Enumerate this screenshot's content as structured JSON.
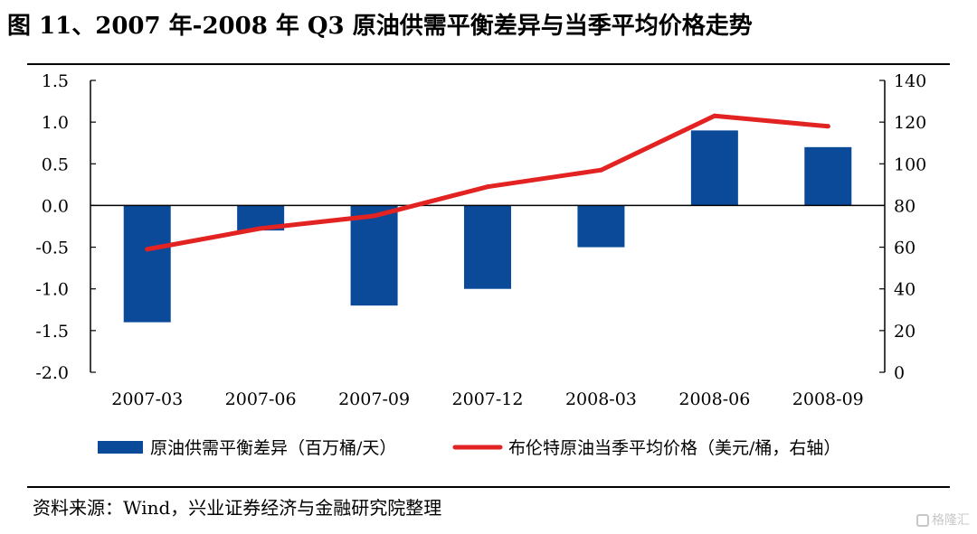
{
  "header": {
    "title": "图 11、2007 年-2008 年 Q3 原油供需平衡差异与当季平均价格走势"
  },
  "footer": {
    "source": "资料来源：Wind，兴业证券经济与金融研究院整理",
    "watermark": "格隆汇"
  },
  "colors": {
    "bar": "#0a4a99",
    "line": "#e32222",
    "axis": "#000000"
  },
  "chart_data": {
    "type": "bar+line",
    "categories": [
      "2007-03",
      "2007-06",
      "2007-09",
      "2007-12",
      "2008-03",
      "2008-06",
      "2008-09"
    ],
    "series": [
      {
        "name": "原油供需平衡差异（百万桶/天）",
        "type": "bar",
        "axis": "left",
        "values": [
          -1.4,
          -0.3,
          -1.2,
          -1.0,
          -0.5,
          0.9,
          0.7
        ]
      },
      {
        "name": "布伦特原油当季平均价格（美元/桶，右轴）",
        "type": "line",
        "axis": "right",
        "values": [
          59,
          69,
          75,
          89,
          97,
          123,
          118
        ]
      }
    ],
    "y_left": {
      "min": -2.0,
      "max": 1.5,
      "step": 0.5,
      "ticks": [
        "-2.0",
        "-1.5",
        "-1.0",
        "-0.5",
        "0.0",
        "0.5",
        "1.0",
        "1.5"
      ]
    },
    "y_right": {
      "min": 0,
      "max": 140,
      "step": 20,
      "ticks": [
        "0",
        "20",
        "40",
        "60",
        "80",
        "100",
        "120",
        "140"
      ]
    },
    "grid": false,
    "legend_position": "bottom"
  }
}
